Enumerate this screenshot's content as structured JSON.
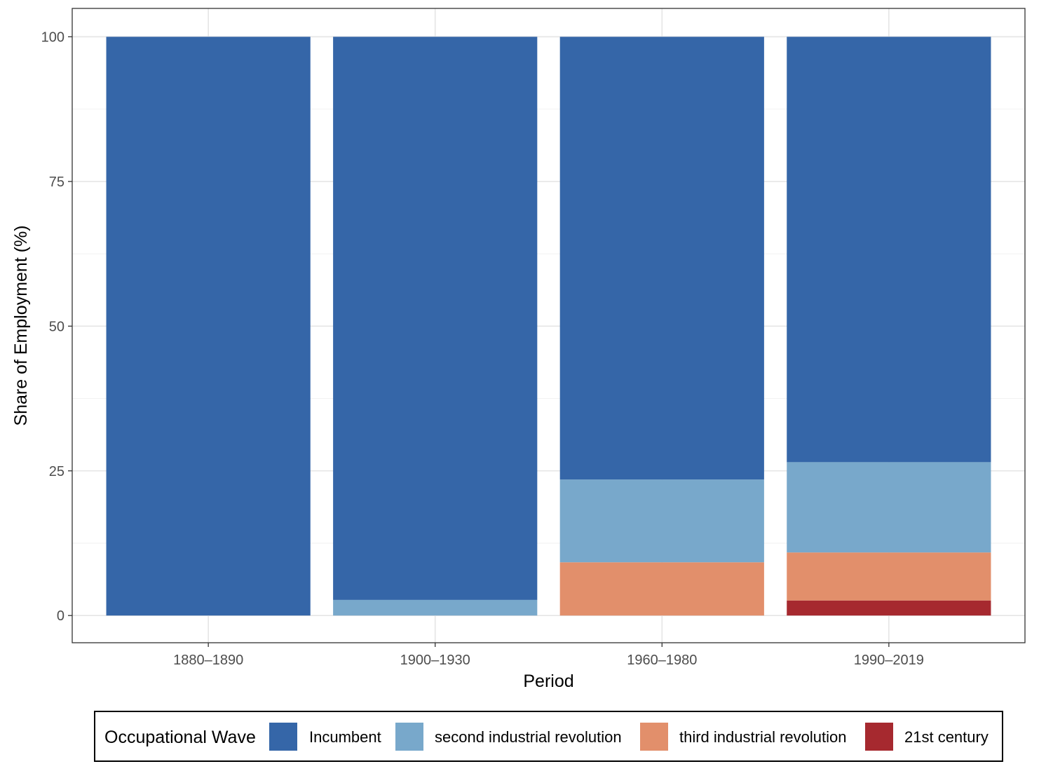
{
  "chart_data": {
    "type": "bar",
    "stacked": true,
    "title": "",
    "xlabel": "Period",
    "ylabel": "Share of Employment (%)",
    "ylim": [
      -4.7,
      104.9
    ],
    "yticks": [
      0,
      25,
      50,
      75,
      100
    ],
    "grid": true,
    "legend_position": "bottom",
    "legend_title": "Occupational Wave",
    "categories": [
      "1880–1890",
      "1900–1930",
      "1960–1980",
      "1990–2019"
    ],
    "series": [
      {
        "name": "21st century",
        "color": "#a6292f",
        "values": [
          0,
          0,
          0,
          2.6
        ]
      },
      {
        "name": "third industrial revolution",
        "color": "#e28f6b",
        "values": [
          0,
          0,
          9.2,
          8.3
        ]
      },
      {
        "name": "second industrial revolution",
        "color": "#78a8cb",
        "values": [
          0,
          2.7,
          14.3,
          15.6
        ]
      },
      {
        "name": "Incumbent",
        "color": "#3566a8",
        "values": [
          100,
          97.3,
          76.5,
          73.5
        ]
      }
    ],
    "legend_order": [
      "Incumbent",
      "second industrial revolution",
      "third industrial revolution",
      "21st century"
    ]
  }
}
